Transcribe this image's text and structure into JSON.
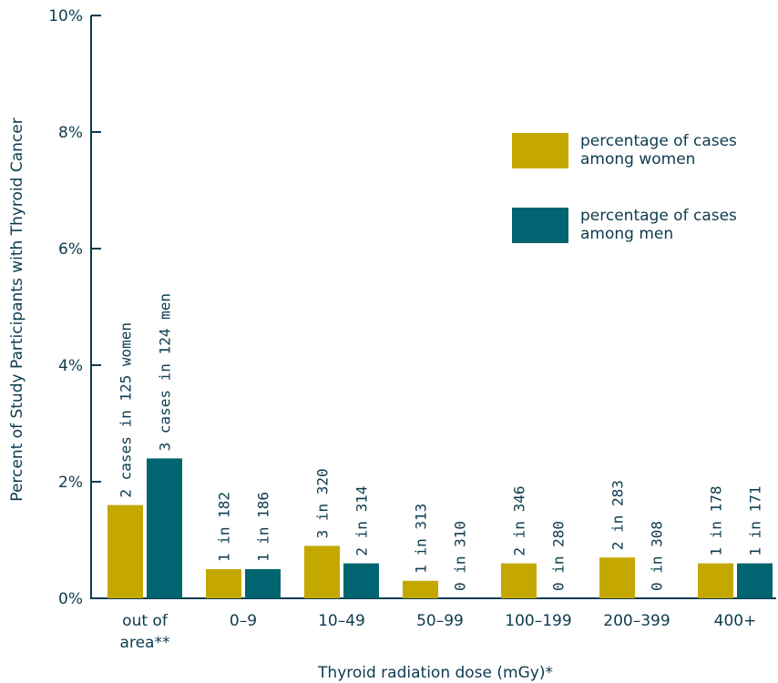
{
  "chart_data": {
    "type": "bar",
    "ylabel": "Percent of Study Participants with Thyroid Cancer",
    "xlabel": "Thyroid radiation dose (mGy)*",
    "ylim": [
      0,
      10
    ],
    "y_ticks": [
      "0%",
      "2%",
      "4%",
      "6%",
      "8%",
      "10%"
    ],
    "categories": [
      {
        "lines": [
          "out of",
          "area**"
        ]
      },
      {
        "lines": [
          "0–9"
        ]
      },
      {
        "lines": [
          "10–49"
        ]
      },
      {
        "lines": [
          "50–99"
        ]
      },
      {
        "lines": [
          "100–199"
        ]
      },
      {
        "lines": [
          "200–399"
        ]
      },
      {
        "lines": [
          "400+"
        ]
      }
    ],
    "series": [
      {
        "name": "percentage of cases among women",
        "legend_lines": [
          "percentage of cases",
          "among women"
        ],
        "color": "#c4a800",
        "values": [
          1.6,
          0.5,
          0.9,
          0.3,
          0.6,
          0.7,
          0.6
        ],
        "labels": [
          "2 cases in 125 women",
          "1 in 182",
          "3 in 320",
          "1 in 313",
          "2 in 346",
          "2 in 283",
          "1 in 178"
        ]
      },
      {
        "name": "percentage of cases among men",
        "legend_lines": [
          "percentage of cases",
          "among men"
        ],
        "color": "#006570",
        "values": [
          2.4,
          0.5,
          0.6,
          0.0,
          0.0,
          0.0,
          0.6
        ],
        "labels": [
          "3 cases in 124 men",
          "1 in 186",
          "2 in 314",
          "0 in 310",
          "0 in 280",
          "0 in 308",
          "1 in 171"
        ]
      }
    ],
    "legend_position": "top-right",
    "grid": false
  }
}
